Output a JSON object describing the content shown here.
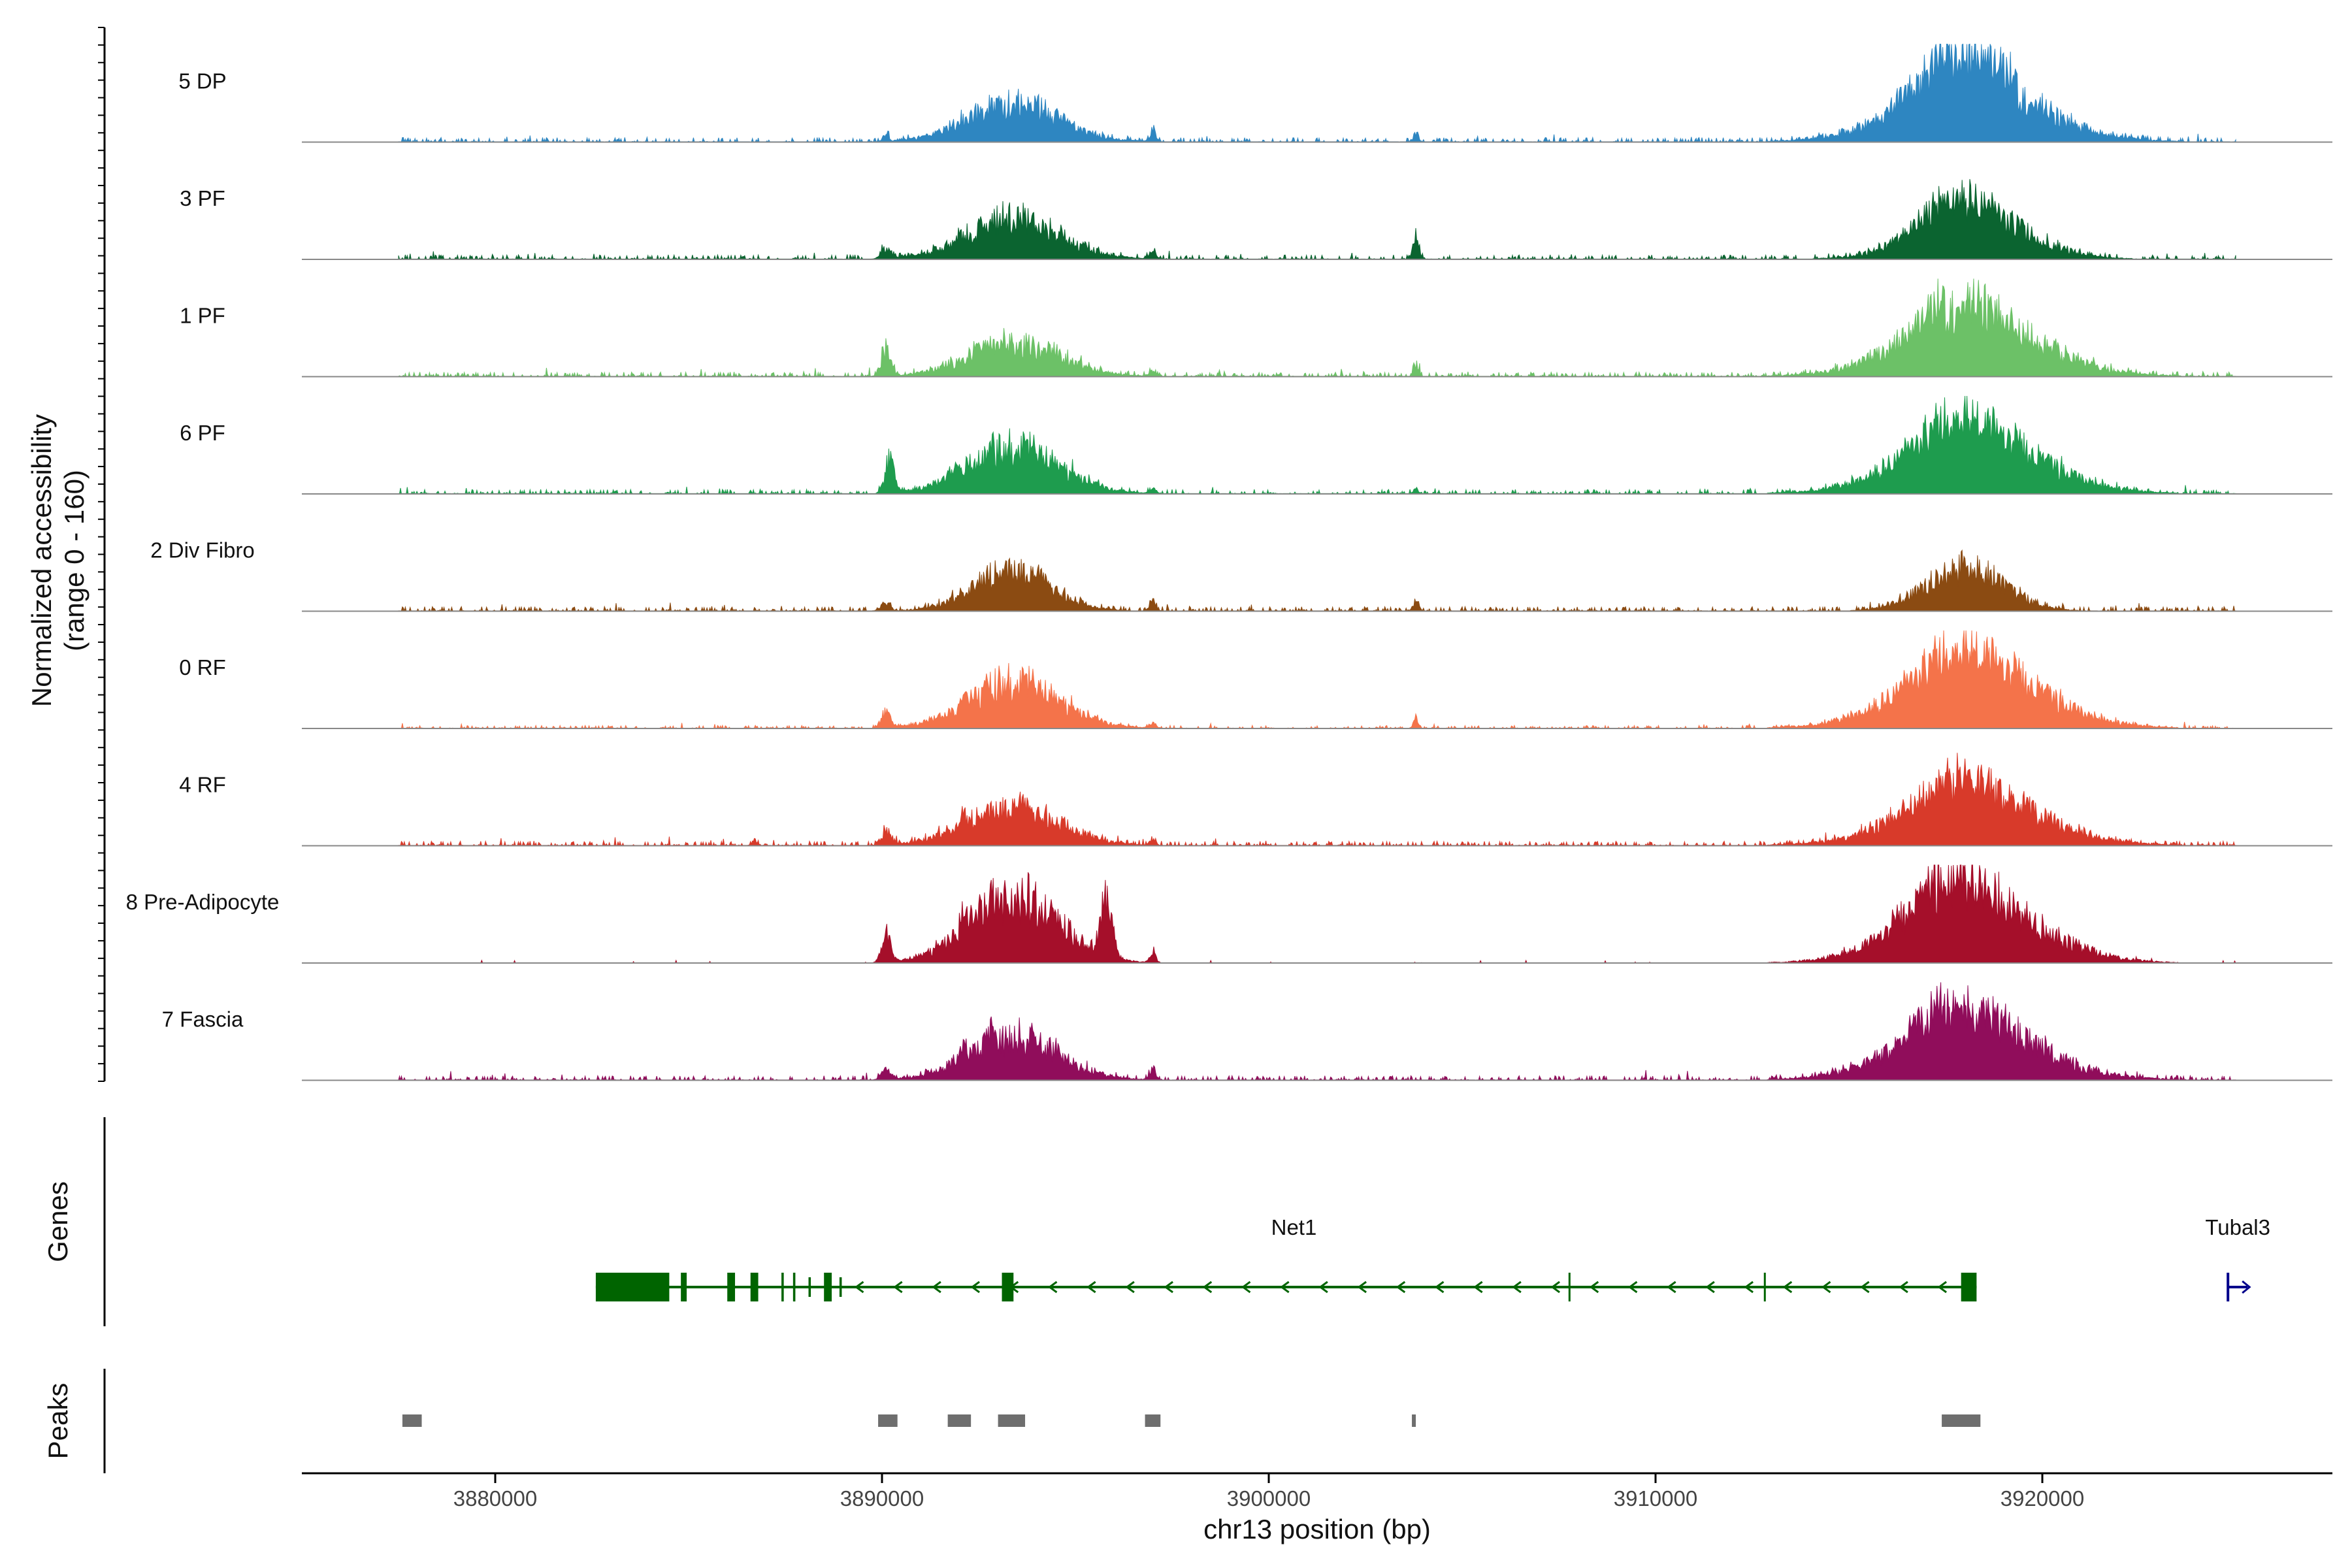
{
  "chart_data": {
    "type": "area",
    "title": "",
    "ylabel_line1": "Normalized accessibility",
    "ylabel_line2": "(range 0 - 160)",
    "y_range": [
      0,
      160
    ],
    "xlabel": "chr13 position (bp)",
    "xlim": [
      3875000,
      3927500
    ],
    "x_ticks": [
      3880000,
      3890000,
      3900000,
      3910000,
      3920000
    ],
    "x_tick_labels": [
      "3880000",
      "3890000",
      "3900000",
      "3910000",
      "3920000"
    ],
    "region_start": 3877500,
    "region_end": 3925000,
    "tracks": [
      {
        "name": "5 DP",
        "color": "#2E86C1",
        "baseline": 3,
        "noise": 0.8,
        "peaks": [
          [
            3890100,
            160,
            16
          ],
          [
            3893400,
            3000,
            75
          ],
          [
            3897000,
            200,
            22
          ],
          [
            3903800,
            160,
            20
          ],
          [
            3917800,
            2500,
            80
          ],
          [
            3918200,
            4500,
            100
          ]
        ]
      },
      {
        "name": "3 PF",
        "color": "#0B6430",
        "baseline": 3,
        "noise": 0.9,
        "peaks": [
          [
            3890100,
            300,
            20
          ],
          [
            3893400,
            3000,
            80
          ],
          [
            3897000,
            200,
            14
          ],
          [
            3903800,
            200,
            45
          ],
          [
            3917600,
            2000,
            40
          ],
          [
            3918200,
            3500,
            85
          ]
        ]
      },
      {
        "name": "1 PF",
        "color": "#6CC167",
        "baseline": 3,
        "noise": 1.0,
        "peaks": [
          [
            3890100,
            300,
            55
          ],
          [
            3893400,
            3000,
            65
          ],
          [
            3892800,
            150,
            12
          ],
          [
            3897000,
            200,
            12
          ],
          [
            3903800,
            150,
            22
          ],
          [
            3917800,
            2500,
            45
          ],
          [
            3918200,
            4500,
            100
          ]
        ]
      },
      {
        "name": "6 PF",
        "color": "#1E9C4E",
        "baseline": 3,
        "noise": 1.0,
        "peaks": [
          [
            3890200,
            300,
            62
          ],
          [
            3891900,
            200,
            22
          ],
          [
            3893400,
            3000,
            90
          ],
          [
            3892800,
            150,
            12
          ],
          [
            3897000,
            200,
            12
          ],
          [
            3903800,
            150,
            12
          ],
          [
            3917800,
            2500,
            50
          ],
          [
            3918200,
            4500,
            100
          ]
        ]
      },
      {
        "name": "2 Div Fibro",
        "color": "#8B4B12",
        "baseline": 3,
        "noise": 0.9,
        "peaks": [
          [
            3890100,
            300,
            16
          ],
          [
            3893400,
            2500,
            80
          ],
          [
            3897000,
            200,
            18
          ],
          [
            3903800,
            200,
            16
          ],
          [
            3918000,
            2500,
            85
          ]
        ]
      },
      {
        "name": "0 RF",
        "color": "#F4734A",
        "baseline": 2,
        "noise": 0.8,
        "peaks": [
          [
            3890100,
            300,
            28
          ],
          [
            3892100,
            150,
            28
          ],
          [
            3893400,
            3000,
            90
          ],
          [
            3897000,
            200,
            12
          ],
          [
            3903800,
            150,
            25
          ],
          [
            3917800,
            2500,
            45
          ],
          [
            3918200,
            4500,
            110
          ]
        ]
      },
      {
        "name": "4 RF",
        "color": "#D83A2A",
        "baseline": 3,
        "noise": 1.0,
        "peaks": [
          [
            3890100,
            300,
            28
          ],
          [
            3892100,
            150,
            25
          ],
          [
            3893400,
            3000,
            75
          ],
          [
            3886700,
            150,
            12
          ],
          [
            3897000,
            200,
            12
          ],
          [
            3917800,
            2500,
            40
          ],
          [
            3918200,
            4500,
            90
          ]
        ]
      },
      {
        "name": "8 Pre-Adipocyte",
        "color": "#A50F2A",
        "baseline": 0,
        "noise": 0.5,
        "peaks": [
          [
            3890100,
            300,
            55
          ],
          [
            3892100,
            150,
            40
          ],
          [
            3893400,
            3000,
            130
          ],
          [
            3895800,
            400,
            105
          ],
          [
            3894500,
            200,
            35
          ],
          [
            3897000,
            200,
            25
          ],
          [
            3917600,
            2500,
            60
          ],
          [
            3918200,
            4500,
            110
          ]
        ]
      },
      {
        "name": "7 Fascia",
        "color": "#900D5B",
        "baseline": 3,
        "noise": 1.0,
        "peaks": [
          [
            3890100,
            300,
            20
          ],
          [
            3892100,
            150,
            28
          ],
          [
            3893400,
            3000,
            80
          ],
          [
            3892800,
            150,
            22
          ],
          [
            3897000,
            200,
            20
          ],
          [
            3917600,
            2500,
            50
          ],
          [
            3918200,
            4500,
            100
          ]
        ]
      }
    ],
    "genes_panel_label": "Genes",
    "genes": [
      {
        "name": "Net1",
        "strand": "-",
        "color": "#006400",
        "start": 3882600,
        "end": 3918300
      },
      {
        "name": "Tubal3",
        "strand": "+",
        "color": "#00008B",
        "start": 3924800,
        "end": 3925300
      }
    ],
    "peaks_panel_label": "Peaks",
    "peak_regions": [
      [
        3877600,
        3878100
      ],
      [
        3889900,
        3890400
      ],
      [
        3891700,
        3892300
      ],
      [
        3893000,
        3893700
      ],
      [
        3896800,
        3897200
      ],
      [
        3903700,
        3903800
      ],
      [
        3917400,
        3918400
      ]
    ]
  }
}
